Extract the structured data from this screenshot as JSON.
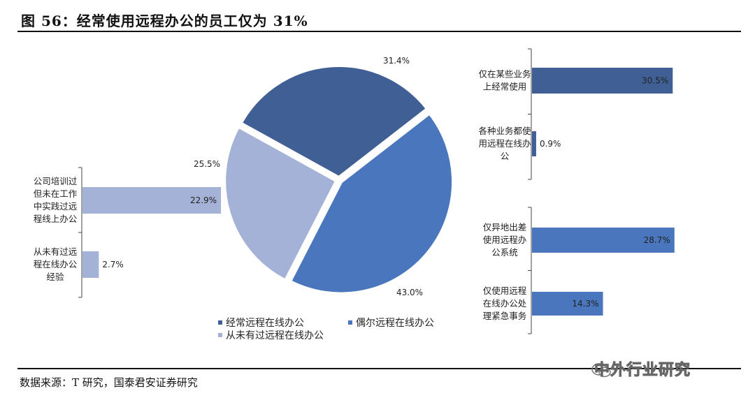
{
  "header": {
    "title": "图 56：经常使用远程办公的员工仅为 31%"
  },
  "footer": {
    "source": "数据来源：T 研究，国泰君安证券研究",
    "watermark": "中外行业研究"
  },
  "colors": {
    "dark_blue": "#3f5f95",
    "mid_blue": "#4a76be",
    "light_blue": "#a3b2d6"
  },
  "chart_data": [
    {
      "type": "pie",
      "title": "",
      "slices": [
        {
          "name": "经常远程在线办公",
          "value": 31.4,
          "label": "31.4%",
          "color": "#3f5f95"
        },
        {
          "name": "偶尔远程在线办公",
          "value": 43.0,
          "label": "43.0%",
          "color": "#4a76be"
        },
        {
          "name": "从未有过远程在线办公",
          "value": 25.5,
          "label": "25.5%",
          "color": "#a3b2d6"
        }
      ],
      "legend": [
        {
          "name": "经常远程在线办公",
          "color": "#3f5f95"
        },
        {
          "name": "偶尔远程在线办公",
          "color": "#4a76be"
        },
        {
          "name": "从未有过远程在线办公",
          "color": "#a3b2d6"
        }
      ],
      "legend_placement": "bottom"
    },
    {
      "type": "bar",
      "orientation": "horizontal",
      "group": "经常远程在线办公",
      "categories": [
        [
          "仅在某些业务",
          "上经常使用"
        ],
        [
          "各种业务都使",
          "用远程在线办",
          "公"
        ]
      ],
      "values": [
        30.5,
        0.9
      ],
      "labels": [
        "30.5%",
        "0.9%"
      ],
      "color": "#3f5f95"
    },
    {
      "type": "bar",
      "orientation": "horizontal",
      "group": "偶尔远程在线办公",
      "categories": [
        [
          "仅异地出差",
          "使用远程办",
          "公系统"
        ],
        [
          "仅使用远程",
          "在线办公处",
          "理紧急事务"
        ]
      ],
      "values": [
        28.7,
        14.3
      ],
      "labels": [
        "28.7%",
        "14.3%"
      ],
      "color": "#4a76be"
    },
    {
      "type": "bar",
      "orientation": "horizontal",
      "group": "从未有过远程在线办公",
      "categories": [
        [
          "公司培训过",
          "但未在工作",
          "中实践过远",
          "程线上办公"
        ],
        [
          "从未有过远",
          "程在线办公",
          "经验"
        ]
      ],
      "values": [
        22.9,
        2.7
      ],
      "labels": [
        "22.9%",
        "2.7%"
      ],
      "color": "#a3b2d6"
    }
  ]
}
